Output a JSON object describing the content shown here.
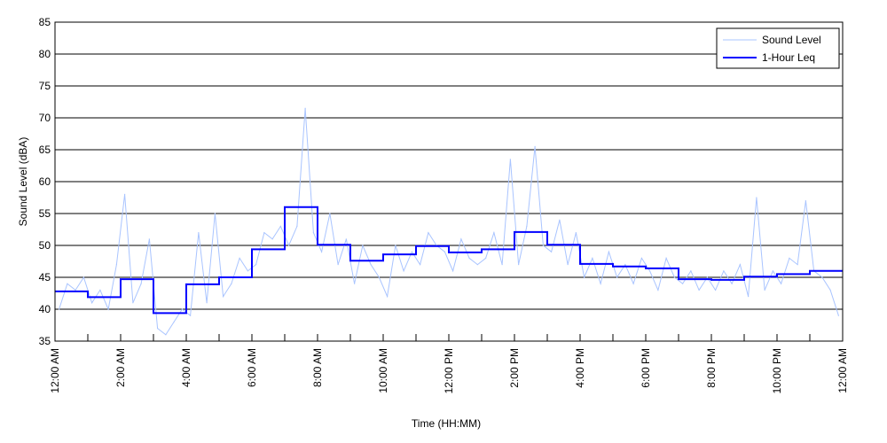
{
  "chart_data": {
    "type": "line",
    "xlabel": "Time (HH:MM)",
    "ylabel": "Sound Level (dBA)",
    "ylim": [
      35,
      85
    ],
    "yticks": [
      35,
      40,
      45,
      50,
      55,
      60,
      65,
      70,
      75,
      80,
      85
    ],
    "xlim_hours": [
      0,
      24
    ],
    "xtick_labels": [
      "12:00 AM",
      "2:00 AM",
      "4:00 AM",
      "6:00 AM",
      "8:00 AM",
      "10:00 AM",
      "12:00 PM",
      "2:00 PM",
      "4:00 PM",
      "6:00 PM",
      "8:00 PM",
      "10:00 PM",
      "12:00 AM"
    ],
    "grid": "horizontal",
    "legend_position": "top-right",
    "series": [
      {
        "name": "Sound Level",
        "color": "#a9c4ff",
        "interval_minutes": 15,
        "values": [
          40,
          44,
          43,
          45,
          41,
          43,
          40,
          47,
          58,
          41,
          44,
          51,
          37,
          36,
          38,
          40,
          39,
          52,
          41,
          55,
          42,
          44,
          48,
          46,
          47,
          52,
          51,
          53,
          50,
          53,
          71.5,
          52,
          49,
          55,
          47,
          51,
          44,
          50,
          47,
          45,
          42,
          50,
          46,
          49,
          47,
          52,
          50,
          49,
          46,
          51,
          48,
          47,
          48,
          52,
          47,
          63.5,
          47,
          53,
          65.5,
          50,
          49,
          54,
          47,
          52,
          45,
          48,
          44,
          49,
          45,
          47,
          44,
          48,
          46,
          43,
          48,
          45,
          44,
          46,
          43,
          45,
          43,
          46,
          44,
          47,
          42,
          57.5,
          43,
          46,
          44,
          48,
          47,
          57,
          46,
          45,
          43,
          39
        ]
      },
      {
        "name": "1-Hour Leq",
        "color": "#0000ff",
        "interval_minutes": 60,
        "values": [
          42.8,
          41.9,
          44.7,
          39.4,
          43.9,
          45.0,
          49.4,
          56.0,
          50.1,
          47.6,
          48.6,
          49.9,
          48.9,
          49.4,
          52.1,
          50.1,
          47.1,
          46.7,
          46.4,
          44.7,
          44.6,
          45.1,
          45.5,
          46.0
        ]
      }
    ]
  }
}
